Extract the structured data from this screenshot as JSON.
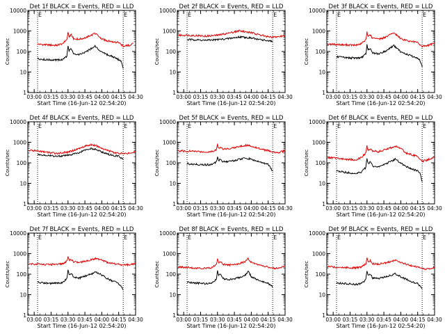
{
  "chart_data": [
    {
      "type": "line",
      "title": "Det 1f BLACK = Events, RED = LLD",
      "xlabel": "Start Time (16-Jun-12 02:54:20)",
      "ylabel": "Counts/sec",
      "yscale": "log",
      "ylim": [
        1,
        10000
      ],
      "xlim": [
        "02:54:20",
        "04:30"
      ],
      "x_ticks": [
        "03:00",
        "03:15",
        "03:30",
        "03:45",
        "04:00",
        "04:15",
        "04:30"
      ],
      "y_ticks": [
        "1",
        "10",
        "100",
        "1000",
        "10000"
      ],
      "marker_lines": [
        "03:03",
        "04:19"
      ],
      "marker_label": "E",
      "x": [
        "03:03",
        "03:10",
        "03:20",
        "03:25",
        "03:29",
        "03:30",
        "03:31",
        "03:33",
        "03:35",
        "03:40",
        "03:45",
        "03:50",
        "03:54",
        "03:55",
        "04:00",
        "04:05",
        "04:10",
        "04:15",
        "04:17",
        "04:19",
        "04:21",
        "04:25",
        "04:28"
      ],
      "series": [
        {
          "name": "RED = LLD",
          "color": "#e00000",
          "values": [
            230,
            210,
            200,
            240,
            380,
            850,
            520,
            650,
            420,
            400,
            460,
            600,
            760,
            700,
            400,
            330,
            300,
            270,
            220,
            180,
            190,
            200,
            260
          ]
        },
        {
          "name": "BLACK = Events",
          "color": "#000000",
          "values": [
            45,
            40,
            38,
            40,
            60,
            190,
            110,
            140,
            80,
            70,
            90,
            130,
            190,
            160,
            90,
            70,
            55,
            40,
            35,
            15,
            null,
            null,
            null
          ]
        }
      ]
    },
    {
      "type": "line",
      "title": "Det 2f BLACK = Events, RED = LLD",
      "xlabel": "Start Time (16-Jun-12 02:54:20)",
      "ylabel": "Counts/sec",
      "yscale": "log",
      "ylim": [
        1,
        10000
      ],
      "xlim": [
        "02:54:20",
        "04:30"
      ],
      "x_ticks": [
        "03:00",
        "03:15",
        "03:30",
        "03:45",
        "04:00",
        "04:15",
        "04:30"
      ],
      "y_ticks": [
        "1",
        "10",
        "100",
        "1000",
        "10000"
      ],
      "marker_lines": [
        "03:03",
        "04:19"
      ],
      "marker_label": "E",
      "x": [
        "02:55",
        "03:03",
        "03:10",
        "03:20",
        "03:30",
        "03:40",
        "03:45",
        "03:50",
        "03:55",
        "04:00",
        "04:05",
        "04:10",
        "04:15",
        "04:19",
        "04:25",
        "04:30"
      ],
      "series": [
        {
          "name": "RED = LLD",
          "color": "#e00000",
          "values": [
            620,
            620,
            600,
            560,
            620,
            780,
            900,
            1050,
            900,
            820,
            700,
            600,
            520,
            500,
            540,
            600
          ]
        },
        {
          "name": "BLACK = Events",
          "color": "#000000",
          "values": [
            null,
            380,
            370,
            350,
            380,
            420,
            460,
            520,
            480,
            450,
            400,
            360,
            330,
            300,
            null,
            null
          ]
        }
      ]
    },
    {
      "type": "line",
      "title": "Det 3f BLACK = Events, RED = LLD",
      "xlabel": "Start Time (16-Jun-12 02:54:20)",
      "ylabel": "Counts/sec",
      "yscale": "log",
      "ylim": [
        1,
        10000
      ],
      "xlim": [
        "02:54:20",
        "04:30"
      ],
      "x_ticks": [
        "03:00",
        "03:15",
        "03:30",
        "03:45",
        "04:00",
        "04:15",
        "04:30"
      ],
      "y_ticks": [
        "1",
        "10",
        "100",
        "1000",
        "10000"
      ],
      "marker_lines": [
        "03:03",
        "04:19"
      ],
      "marker_label": "E",
      "x": [
        "02:55",
        "03:03",
        "03:10",
        "03:20",
        "03:25",
        "03:29",
        "03:30",
        "03:31",
        "03:33",
        "03:35",
        "03:40",
        "03:45",
        "03:50",
        "03:54",
        "03:55",
        "04:00",
        "04:05",
        "04:10",
        "04:15",
        "04:17",
        "04:19",
        "04:21",
        "04:25",
        "04:30"
      ],
      "series": [
        {
          "name": "RED = LLD",
          "color": "#e00000",
          "values": [
            230,
            220,
            210,
            200,
            240,
            380,
            900,
            520,
            650,
            420,
            400,
            470,
            620,
            800,
            720,
            420,
            340,
            300,
            270,
            220,
            180,
            190,
            200,
            270
          ]
        },
        {
          "name": "BLACK = Events",
          "color": "#000000",
          "values": [
            null,
            55,
            50,
            48,
            50,
            75,
            210,
            120,
            150,
            85,
            75,
            95,
            140,
            200,
            170,
            95,
            75,
            60,
            45,
            38,
            18,
            null,
            null,
            null
          ]
        }
      ]
    },
    {
      "type": "line",
      "title": "Det 4f BLACK = Events, RED = LLD",
      "xlabel": "Start Time (16-Jun-12 02:54:20)",
      "ylabel": "Counts/sec",
      "yscale": "log",
      "ylim": [
        1,
        10000
      ],
      "xlim": [
        "02:54:20",
        "04:30"
      ],
      "x_ticks": [
        "03:00",
        "03:15",
        "03:30",
        "03:45",
        "04:00",
        "04:15",
        "04:30"
      ],
      "y_ticks": [
        "1",
        "10",
        "100",
        "1000",
        "10000"
      ],
      "marker_lines": [
        "03:03",
        "04:19"
      ],
      "marker_label": "E",
      "x": [
        "02:55",
        "03:03",
        "03:10",
        "03:20",
        "03:30",
        "03:40",
        "03:45",
        "03:50",
        "03:55",
        "04:00",
        "04:05",
        "04:10",
        "04:15",
        "04:19",
        "04:25",
        "04:30"
      ],
      "series": [
        {
          "name": "RED = LLD",
          "color": "#e00000",
          "values": [
            400,
            380,
            330,
            290,
            330,
            500,
            650,
            780,
            680,
            520,
            400,
            330,
            290,
            280,
            300,
            360
          ]
        },
        {
          "name": "BLACK = Events",
          "color": "#000000",
          "values": [
            null,
            260,
            230,
            210,
            230,
            320,
            420,
            500,
            440,
            340,
            270,
            230,
            210,
            150,
            null,
            null
          ]
        }
      ]
    },
    {
      "type": "line",
      "title": "Det 5f BLACK = Events, RED = LLD",
      "xlabel": "Start Time (16-Jun-12 02:54:20)",
      "ylabel": "Counts/sec",
      "yscale": "log",
      "ylim": [
        1,
        10000
      ],
      "xlim": [
        "02:54:20",
        "04:30"
      ],
      "x_ticks": [
        "03:00",
        "03:15",
        "03:30",
        "03:45",
        "04:00",
        "04:15",
        "04:30"
      ],
      "y_ticks": [
        "1",
        "10",
        "100",
        "1000",
        "10000"
      ],
      "marker_lines": [
        "03:03",
        "04:19"
      ],
      "marker_label": "E",
      "x": [
        "02:55",
        "03:03",
        "03:10",
        "03:20",
        "03:25",
        "03:29",
        "03:30",
        "03:31",
        "03:33",
        "03:35",
        "03:40",
        "03:45",
        "03:50",
        "03:55",
        "04:00",
        "04:05",
        "04:10",
        "04:15",
        "04:19",
        "04:25",
        "04:30"
      ],
      "series": [
        {
          "name": "RED = LLD",
          "color": "#e00000",
          "values": [
            380,
            370,
            360,
            340,
            350,
            450,
            800,
            520,
            600,
            480,
            500,
            560,
            640,
            720,
            660,
            540,
            450,
            400,
            330,
            320,
            400
          ]
        },
        {
          "name": "BLACK = Events",
          "color": "#000000",
          "values": [
            null,
            90,
            85,
            80,
            85,
            110,
            210,
            130,
            150,
            110,
            115,
            130,
            150,
            170,
            150,
            120,
            100,
            85,
            40,
            null,
            null
          ]
        }
      ]
    },
    {
      "type": "line",
      "title": "Det 6f BLACK = Events, RED = LLD",
      "xlabel": "Start Time (16-Jun-12 02:54:20)",
      "ylabel": "Counts/sec",
      "yscale": "log",
      "ylim": [
        1,
        10000
      ],
      "xlim": [
        "02:54:20",
        "04:30"
      ],
      "x_ticks": [
        "03:00",
        "03:15",
        "03:30",
        "03:45",
        "04:00",
        "04:15",
        "04:30"
      ],
      "y_ticks": [
        "1",
        "10",
        "100",
        "1000",
        "10000"
      ],
      "marker_lines": [
        "03:03",
        "04:19"
      ],
      "marker_label": "E",
      "x": [
        "02:55",
        "03:03",
        "03:10",
        "03:20",
        "03:25",
        "03:29",
        "03:30",
        "03:31",
        "03:33",
        "03:35",
        "03:40",
        "03:45",
        "03:50",
        "03:55",
        "04:00",
        "04:05",
        "04:10",
        "04:15",
        "04:17",
        "04:19",
        "04:22",
        "04:25",
        "04:30"
      ],
      "series": [
        {
          "name": "RED = LLD",
          "color": "#e00000",
          "values": [
            180,
            170,
            150,
            140,
            180,
            300,
            650,
            400,
            480,
            380,
            350,
            420,
            520,
            650,
            500,
            300,
            240,
            200,
            150,
            120,
            130,
            150,
            190
          ]
        },
        {
          "name": "BLACK = Events",
          "color": "#000000",
          "values": [
            null,
            40,
            35,
            30,
            35,
            60,
            180,
            90,
            110,
            70,
            65,
            80,
            110,
            150,
            100,
            65,
            50,
            40,
            30,
            12,
            null,
            null,
            null
          ]
        }
      ]
    },
    {
      "type": "line",
      "title": "Det 7f BLACK = Events, RED = LLD",
      "xlabel": "Start Time (16-Jun-12 02:54:20)",
      "ylabel": "Counts/sec",
      "yscale": "log",
      "ylim": [
        1,
        10000
      ],
      "xlim": [
        "02:54:20",
        "04:30"
      ],
      "x_ticks": [
        "03:00",
        "03:15",
        "03:30",
        "03:45",
        "04:00",
        "04:15",
        "04:30"
      ],
      "y_ticks": [
        "1",
        "10",
        "100",
        "1000",
        "10000"
      ],
      "marker_lines": [
        "03:03",
        "04:19"
      ],
      "marker_label": "E",
      "x": [
        "02:55",
        "03:03",
        "03:10",
        "03:20",
        "03:25",
        "03:29",
        "03:30",
        "03:31",
        "03:33",
        "03:35",
        "03:40",
        "03:45",
        "03:50",
        "03:55",
        "04:00",
        "04:05",
        "04:10",
        "04:15",
        "04:19",
        "04:25",
        "04:30"
      ],
      "series": [
        {
          "name": "RED = LLD",
          "color": "#e00000",
          "values": [
            320,
            310,
            300,
            290,
            320,
            420,
            700,
            470,
            520,
            400,
            380,
            420,
            500,
            580,
            480,
            380,
            330,
            300,
            280,
            290,
            330
          ]
        },
        {
          "name": "BLACK = Events",
          "color": "#000000",
          "values": [
            null,
            40,
            37,
            35,
            38,
            60,
            170,
            95,
            110,
            70,
            65,
            80,
            100,
            125,
            90,
            60,
            45,
            35,
            17,
            null,
            null
          ]
        }
      ]
    },
    {
      "type": "line",
      "title": "Det 8f BLACK = Events, RED = LLD",
      "xlabel": "Start Time (16-Jun-12 02:54:20)",
      "ylabel": "Counts/sec",
      "yscale": "log",
      "ylim": [
        1,
        10000
      ],
      "xlim": [
        "02:54:20",
        "04:30"
      ],
      "x_ticks": [
        "03:00",
        "03:15",
        "03:30",
        "03:45",
        "04:00",
        "04:15",
        "04:30"
      ],
      "y_ticks": [
        "1",
        "10",
        "100",
        "1000",
        "10000"
      ],
      "marker_lines": [
        "03:03",
        "04:19"
      ],
      "marker_label": "E",
      "x": [
        "02:55",
        "03:03",
        "03:10",
        "03:20",
        "03:25",
        "03:29",
        "03:30",
        "03:31",
        "03:33",
        "03:35",
        "03:40",
        "03:45",
        "03:50",
        "03:55",
        "03:57",
        "04:00",
        "04:05",
        "04:10",
        "04:15",
        "04:19",
        "04:25",
        "04:30"
      ],
      "series": [
        {
          "name": "RED = LLD",
          "color": "#e00000",
          "values": [
            220,
            210,
            200,
            190,
            210,
            300,
            600,
            380,
            420,
            300,
            280,
            300,
            340,
            400,
            600,
            380,
            300,
            250,
            220,
            190,
            200,
            240
          ]
        },
        {
          "name": "BLACK = Events",
          "color": "#000000",
          "values": [
            null,
            40,
            37,
            35,
            38,
            55,
            160,
            85,
            100,
            60,
            55,
            60,
            70,
            90,
            150,
            75,
            55,
            42,
            35,
            25,
            null,
            null
          ]
        }
      ]
    },
    {
      "type": "line",
      "title": "Det 9f BLACK = Events, RED = LLD",
      "xlabel": "Start Time (16-Jun-12 02:54:20)",
      "ylabel": "Counts/sec",
      "yscale": "log",
      "ylim": [
        1,
        10000
      ],
      "xlim": [
        "02:54:20",
        "04:30"
      ],
      "x_ticks": [
        "03:00",
        "03:15",
        "03:30",
        "03:45",
        "04:00",
        "04:15",
        "04:30"
      ],
      "y_ticks": [
        "1",
        "10",
        "100",
        "1000",
        "10000"
      ],
      "marker_lines": [
        "03:03",
        "04:19"
      ],
      "marker_label": "E",
      "x": [
        "02:55",
        "03:03",
        "03:10",
        "03:20",
        "03:25",
        "03:29",
        "03:30",
        "03:31",
        "03:33",
        "03:35",
        "03:40",
        "03:45",
        "03:50",
        "03:55",
        "04:00",
        "04:05",
        "04:10",
        "04:15",
        "04:19",
        "04:25",
        "04:30"
      ],
      "series": [
        {
          "name": "RED = LLD",
          "color": "#e00000",
          "values": [
            230,
            220,
            210,
            200,
            220,
            320,
            620,
            400,
            450,
            330,
            310,
            340,
            400,
            470,
            380,
            300,
            250,
            220,
            180,
            180,
            220
          ]
        },
        {
          "name": "BLACK = Events",
          "color": "#000000",
          "values": [
            null,
            38,
            35,
            32,
            35,
            55,
            150,
            85,
            100,
            65,
            60,
            70,
            85,
            105,
            75,
            55,
            42,
            35,
            20,
            null,
            null
          ]
        }
      ]
    }
  ]
}
